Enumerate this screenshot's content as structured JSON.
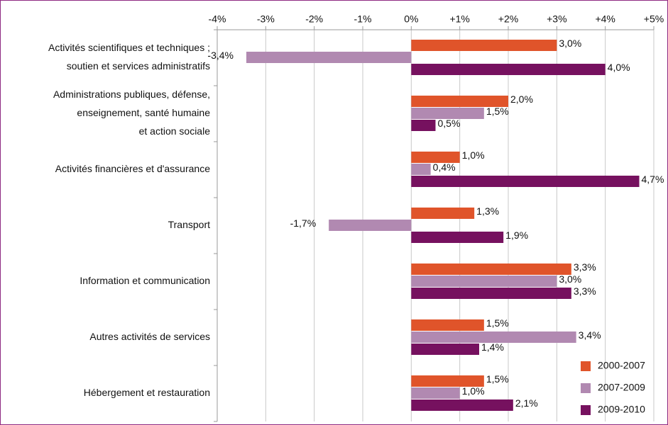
{
  "chart_data": {
    "type": "hbar",
    "categories": [
      [
        "Activités scientifiques et techniques ;",
        "soutien et services administratifs"
      ],
      [
        "Administrations publiques, défense,",
        "enseignement, santé humaine",
        "et action sociale"
      ],
      [
        "Activités financières et d'assurance"
      ],
      [
        "Transport"
      ],
      [
        "Information et communication"
      ],
      [
        "Autres activités de services"
      ],
      [
        "Hébergement et restauration"
      ]
    ],
    "series": [
      {
        "name": "2000-2007",
        "color": "#e0542a",
        "values": [
          3.0,
          2.0,
          1.0,
          1.3,
          3.3,
          1.5,
          1.5
        ],
        "value_labels": [
          "3,0%",
          "2,0%",
          "1,0%",
          "1,3%",
          "3,3%",
          "1,5%",
          "1,5%"
        ]
      },
      {
        "name": "2007-2009",
        "color": "#b189b1",
        "values": [
          -3.4,
          1.5,
          0.4,
          -1.7,
          3.0,
          3.4,
          1.0
        ],
        "value_labels": [
          "-3,4%",
          "1,5%",
          "0,4%",
          "-1,7%",
          "3,0%",
          "3,4%",
          "1,0%"
        ]
      },
      {
        "name": "2009-2010",
        "color": "#76115f",
        "values": [
          4.0,
          0.5,
          4.7,
          1.9,
          3.3,
          1.4,
          2.1
        ],
        "value_labels": [
          "4,0%",
          "0,5%",
          "4,7%",
          "1,9%",
          "3,3%",
          "1,4%",
          "2,1%"
        ]
      }
    ],
    "xlim": [
      -4,
      5
    ],
    "xticks": [
      {
        "value": -4,
        "label": "-4%"
      },
      {
        "value": -3,
        "label": "-3%"
      },
      {
        "value": -2,
        "label": "-2%"
      },
      {
        "value": -1,
        "label": "-1%"
      },
      {
        "value": 0,
        "label": "0%"
      },
      {
        "value": 1,
        "label": "+1%"
      },
      {
        "value": 2,
        "label": "+2%"
      },
      {
        "value": 3,
        "label": "+3%"
      },
      {
        "value": 4,
        "label": "+4%"
      },
      {
        "value": 5,
        "label": "+5%"
      }
    ],
    "grid": true,
    "legend": "lower right"
  }
}
